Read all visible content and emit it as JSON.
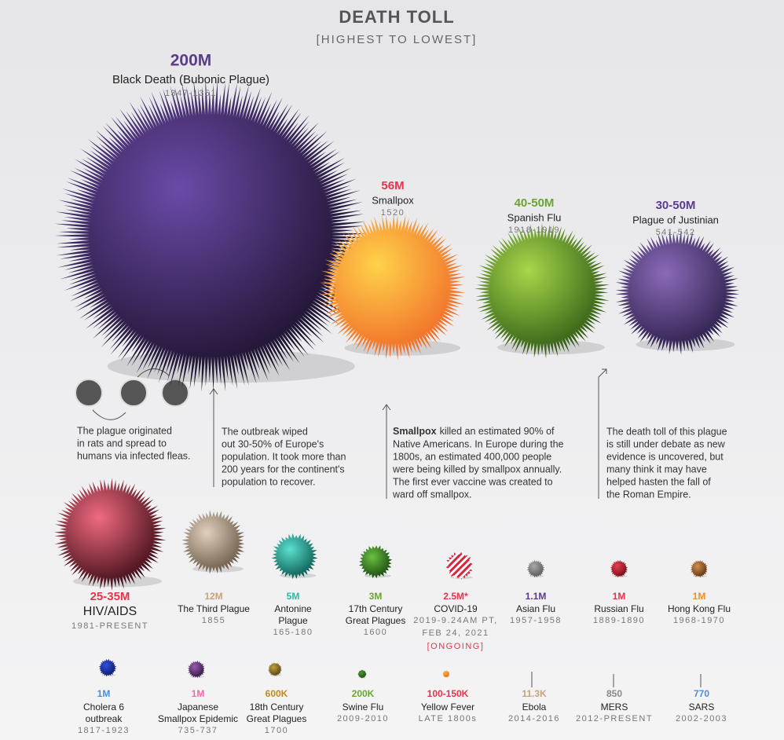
{
  "header": {
    "title": "DEATH TOLL",
    "subtitle": "[HIGHEST TO LOWEST]"
  },
  "top": [
    {
      "value": "200M",
      "name": [
        "Black Death (Bubonic Plague)"
      ],
      "years": [
        "1347-1351"
      ]
    },
    {
      "value": "56M",
      "name": [
        "Smallpox"
      ],
      "years": [
        "1520"
      ]
    },
    {
      "value": "40-50M",
      "name": [
        "Spanish Flu"
      ],
      "years": [
        "1918-1919"
      ]
    },
    {
      "value": "30-50M",
      "name": [
        "Plague of Justinian"
      ],
      "years": [
        "541-542"
      ]
    }
  ],
  "notes": [
    {
      "lines": [
        "The plague originated",
        "in rats and spread to",
        "humans via infected fleas."
      ]
    },
    {
      "lines": [
        "The outbreak wiped",
        "out 30-50% of Europe's",
        "population. It took more than",
        "200 years for the continent's",
        "population to recover."
      ]
    },
    {
      "bold": "Smallpox",
      "lines": [
        "killed an estimated 90% of",
        "Native Americans. In Europe during the",
        "1800s, an estimated 400,000 people",
        "were being killed by smallpox annually.",
        "The first ever vaccine was created to",
        "ward off smallpox."
      ]
    },
    {
      "lines": [
        "The death toll of this plague",
        "is still under debate as new",
        "evidence is uncovered, but",
        "many think it may have",
        "helped hasten the fall of",
        "the Roman Empire."
      ]
    }
  ],
  "middle": [
    {
      "value": "25-35M",
      "name": [
        "HIV/AIDS"
      ],
      "years": [
        "1981-PRESENT"
      ]
    },
    {
      "value": "12M",
      "name": [
        "The Third Plague"
      ],
      "years": [
        "1855"
      ]
    },
    {
      "value": "5M",
      "name": [
        "Antonine",
        "Plague"
      ],
      "years": [
        "165-180"
      ]
    },
    {
      "value": "3M",
      "name": [
        "17th Century",
        "Great Plagues"
      ],
      "years": [
        "1600"
      ]
    },
    {
      "value": "2.5M*",
      "name": [
        "COVID-19"
      ],
      "years": [
        "2019-9.24AM PT,",
        "FEB 24, 2021"
      ],
      "status": "[ONGOING]"
    },
    {
      "value": "1.1M",
      "name": [
        "Asian Flu"
      ],
      "years": [
        "1957-1958"
      ]
    },
    {
      "value": "1M",
      "name": [
        "Russian Flu"
      ],
      "years": [
        "1889-1890"
      ]
    },
    {
      "value": "1M",
      "name": [
        "Hong Kong Flu"
      ],
      "years": [
        "1968-1970"
      ]
    }
  ],
  "bottom": [
    {
      "value": "1M",
      "name": [
        "Cholera 6",
        "outbreak"
      ],
      "years": [
        "1817-1923"
      ]
    },
    {
      "value": "1M",
      "name": [
        "Japanese",
        "Smallpox Epidemic"
      ],
      "years": [
        "735-737"
      ]
    },
    {
      "value": "600K",
      "name": [
        "18th Century",
        "Great Plagues"
      ],
      "years": [
        "1700"
      ]
    },
    {
      "value": "200K",
      "name": [
        "Swine Flu"
      ],
      "years": [
        "2009-2010"
      ]
    },
    {
      "value": "100-150K",
      "name": [
        "Yellow Fever"
      ],
      "years": [
        "LATE 1800s"
      ]
    },
    {
      "value": "11.3K",
      "name": [
        "Ebola"
      ],
      "years": [
        "2014-2016"
      ]
    },
    {
      "value": "850",
      "name": [
        "MERS"
      ],
      "years": [
        "2012-PRESENT"
      ]
    },
    {
      "value": "770",
      "name": [
        "SARS"
      ],
      "years": [
        "2002-2003"
      ]
    }
  ]
}
